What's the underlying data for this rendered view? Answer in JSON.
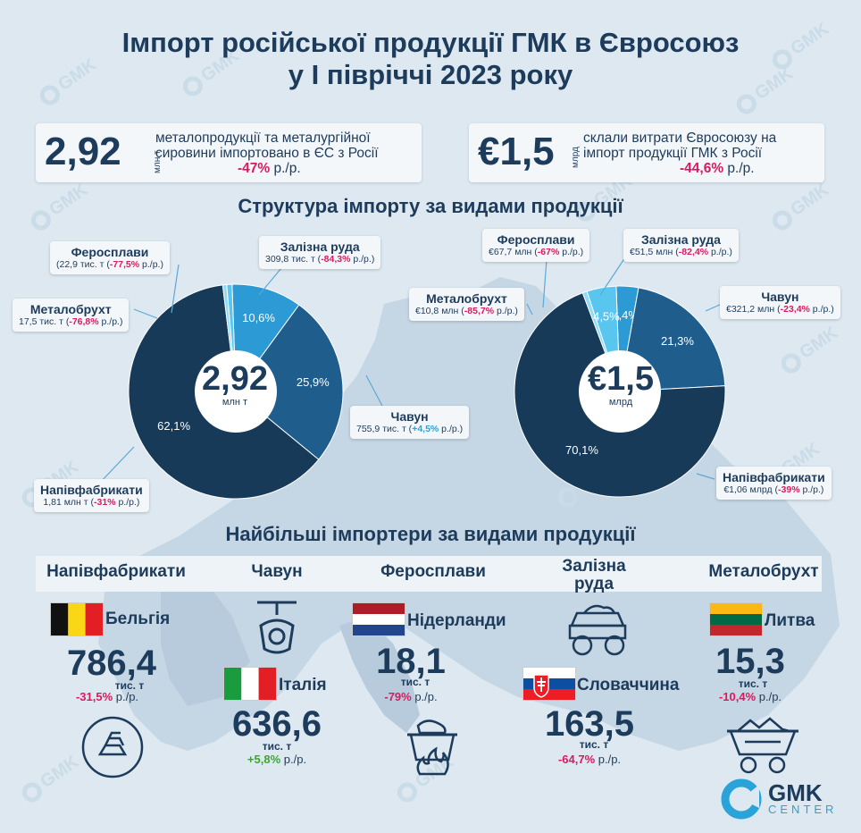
{
  "title": {
    "line1": "Імпорт російської продукції ГМК в Євросоюз",
    "line2": "у І півріччі 2023 року"
  },
  "summary_left": {
    "value": "2,92",
    "unit": "млн т",
    "text1": "металопродукції та металургійної",
    "text2": "сировини імпортовано в ЄС з Росії",
    "change": "-47%",
    "change_suffix": " р./р."
  },
  "summary_right": {
    "value": "€1,5",
    "unit": "млрд",
    "text1": "склали витрати Євросоюзу на",
    "text2": "імпорт продукції ГМК з Росії",
    "change": "-44,6%",
    "change_suffix": " р./р."
  },
  "section1_title": "Структура імпорту за видами продукції",
  "section2_title": "Найбільші імпортери за видами продукції",
  "colors": {
    "dark": "#173a59",
    "mid": "#1f5e8c",
    "light": "#2c9ad5",
    "pale": "#59c6f0",
    "paler": "#8fdcf7",
    "red": "#d81b60",
    "green": "#3aa82d",
    "cyan": "#2aa3d8"
  },
  "chart_data": [
    {
      "type": "pie",
      "center_value": "2,92",
      "center_unit": "млн т",
      "slices": [
        {
          "name": "Напівфабрикати",
          "value": 62.1,
          "label": "62,1%",
          "amount": "1,81 млн т",
          "change": "-31%",
          "color": "#173a59"
        },
        {
          "name": "Чавун",
          "value": 25.9,
          "label": "25,9%",
          "amount": "755,9 тис. т",
          "change": "+4,5%",
          "color": "#1f5e8c"
        },
        {
          "name": "Залізна руда",
          "value": 10.6,
          "label": "10,6%",
          "amount": "309,8 тис. т",
          "change": "-84,3%",
          "color": "#2c9ad5"
        },
        {
          "name": "Феросплави",
          "value": 0.8,
          "label": "",
          "amount": "22,9 тис. т",
          "change": "-77,5%",
          "color": "#59c6f0"
        },
        {
          "name": "Металобрухт",
          "value": 0.6,
          "label": "",
          "amount": "17,5 тис. т",
          "change": "-76,8%",
          "color": "#8fdcf7"
        }
      ]
    },
    {
      "type": "pie",
      "center_value": "€1,5",
      "center_unit": "млрд",
      "slices": [
        {
          "name": "Напівфабрикати",
          "value": 70.1,
          "label": "70,1%",
          "amount": "€1,06 млрд",
          "change": "-39%",
          "color": "#173a59"
        },
        {
          "name": "Чавун",
          "value": 21.3,
          "label": "21,3%",
          "amount": "€321,2 млн",
          "change": "-23,4%",
          "color": "#1f5e8c"
        },
        {
          "name": "Залізна руда",
          "value": 3.4,
          "label": "3,4%",
          "amount": "€51,5 млн",
          "change": "-82,4%",
          "color": "#2c9ad5"
        },
        {
          "name": "Феросплави",
          "value": 4.5,
          "label": "4,5%",
          "amount": "€67,7 млн",
          "change": "-67%",
          "color": "#59c6f0"
        },
        {
          "name": "Металобрухт",
          "value": 0.7,
          "label": "",
          "amount": "€10,8 млн",
          "change": "-85,7%",
          "color": "#8fdcf7"
        }
      ]
    }
  ],
  "pie_suffix": " р./р.)",
  "importers": [
    {
      "category": "Напівфабрикати",
      "country": "Бельгія",
      "value": "786,4",
      "unit": "тис. т",
      "change": "-31,5%",
      "change_suffix": " р./р.",
      "positive": false
    },
    {
      "category": "Чавун",
      "country": "Італія",
      "value": "636,6",
      "unit": "тис. т",
      "change": "+5,8%",
      "change_suffix": " р./р.",
      "positive": true
    },
    {
      "category": "Феросплави",
      "country": "Нідерланди",
      "value": "18,1",
      "unit": "тис. т",
      "change": "-79%",
      "change_suffix": " р./р.",
      "positive": false
    },
    {
      "category": "Залізна руда",
      "country": "Словаччина",
      "value": "163,5",
      "unit": "тис. т",
      "change": "-64,7%",
      "change_suffix": " р./р.",
      "positive": false
    },
    {
      "category": "Металобрухт",
      "country": "Литва",
      "value": "15,3",
      "unit": "тис. т",
      "change": "-10,4%",
      "change_suffix": " р./р.",
      "positive": false
    }
  ],
  "category_labels": {
    "iron_ore_line1": "Залізна",
    "iron_ore_line2": "руда"
  },
  "logo": {
    "name": "GMK",
    "sub": "CENTER"
  },
  "watermark": "GMK"
}
